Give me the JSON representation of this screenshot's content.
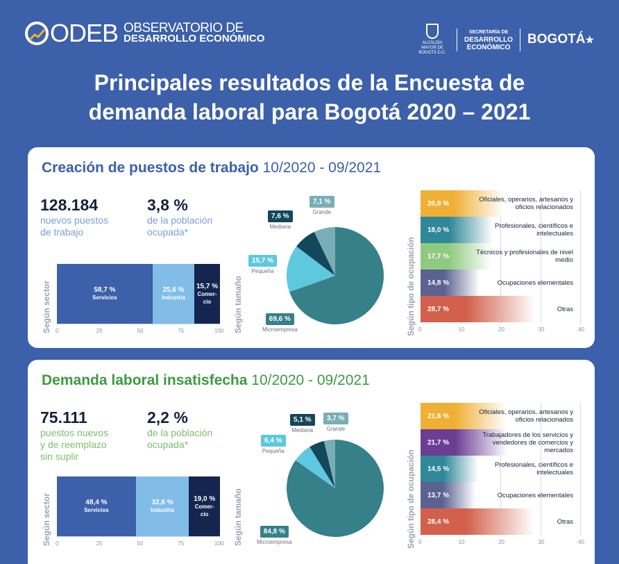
{
  "header": {
    "logo_letters": "ODEB",
    "logo_line1": "OBSERVATORIO DE",
    "logo_line2": "DESARROLLO ECONÓMICO",
    "alcaldia": "ALCALDÍA MAYOR DE BOGOTÁ D.C.",
    "sec_line1": "SECRETARÍA DE",
    "sec_line2": "DESARROLLO",
    "sec_line3": "ECONÓMICO",
    "bogota": "BOGOTÁ"
  },
  "title_line1": "Principales resultados de la Encuesta de",
  "title_line2": "demanda laboral para Bogotá 2020 – 2021",
  "colors": {
    "background": "#3c60a9",
    "servicios": "#3c60a9",
    "industria": "#82bde8",
    "comercio": "#14254f",
    "pie_micro": "#36808a",
    "pie_pequena": "#5ec8de",
    "pie_mediana": "#13475a",
    "pie_grande": "#7aaeb6",
    "occ_oficiales": "#efb035",
    "occ_profesionales": "#2f8898",
    "occ_tecnicos": "#8fca80",
    "occ_elementales": "#5a6390",
    "occ_trabajadores": "#6b3e94",
    "occ_otras": "#d2604c"
  },
  "chart_data": [
    {
      "section_title": "Creación de puestos de trabajo",
      "period": "10/2020 - 09/2021",
      "headline_value": "128.184",
      "headline_desc1": "nuevos puestos",
      "headline_desc2": "de trabajo",
      "headline_desc3": "",
      "share_value": "3,8 %",
      "share_desc1": "de la población",
      "share_desc2": "ocupada*",
      "sector": {
        "type": "bar",
        "label": "Según sector",
        "ticks": [
          "0",
          "25",
          "50",
          "75",
          "100"
        ],
        "segments": [
          {
            "name": "Servicios",
            "value": 58.7,
            "value_label": "58,7 %"
          },
          {
            "name": "Industria",
            "value": 25.6,
            "value_label": "25,6 %"
          },
          {
            "name": "Comer-cio",
            "value": 15.7,
            "value_label": "15,7 %"
          }
        ]
      },
      "size": {
        "type": "pie",
        "label": "Según tamaño",
        "slices": [
          {
            "name": "Microempresa",
            "value": 69.6,
            "value_label": "69,6 %"
          },
          {
            "name": "Pequeña",
            "value": 15.7,
            "value_label": "15,7 %"
          },
          {
            "name": "Mediana",
            "value": 7.6,
            "value_label": "7,6 %"
          },
          {
            "name": "Grande",
            "value": 7.1,
            "value_label": "7,1 %"
          }
        ]
      },
      "occupation": {
        "type": "bar",
        "label": "Según tipo de ocupación",
        "ticks": [
          "0",
          "10",
          "20",
          "30",
          "40"
        ],
        "xlim": [
          0,
          40
        ],
        "bars": [
          {
            "name": "Oficiales, operarios, artesanos y oficios relacionados",
            "value": 20.8,
            "value_label": "20,8 %",
            "color_key": "occ_oficiales"
          },
          {
            "name": "Profesionales, científicos e intelectuales",
            "value": 18.0,
            "value_label": "18,0 %",
            "color_key": "occ_profesionales"
          },
          {
            "name": "Técnicos y profesionales de nivel medio",
            "value": 17.7,
            "value_label": "17,7 %",
            "color_key": "occ_tecnicos"
          },
          {
            "name": "Ocupaciones elementales",
            "value": 14.8,
            "value_label": "14,8 %",
            "color_key": "occ_elementales"
          },
          {
            "name": "Otras",
            "value": 28.7,
            "value_label": "28,7 %",
            "color_key": "occ_otras"
          }
        ]
      }
    },
    {
      "section_title": "Demanda laboral insatisfecha",
      "period": "10/2020 - 09/2021",
      "headline_value": "75.111",
      "headline_desc1": "puestos nuevos",
      "headline_desc2": "y de reemplazo",
      "headline_desc3": "sin suplir",
      "share_value": "2,2 %",
      "share_desc1": "de la población",
      "share_desc2": "ocupada*",
      "sector": {
        "type": "bar",
        "label": "Según sector",
        "ticks": [
          "0",
          "25",
          "50",
          "75",
          "100"
        ],
        "segments": [
          {
            "name": "Servicios",
            "value": 48.4,
            "value_label": "48,4 %"
          },
          {
            "name": "Industria",
            "value": 32.6,
            "value_label": "32,6 %"
          },
          {
            "name": "Comer-cio",
            "value": 19.0,
            "value_label": "19,0 %"
          }
        ]
      },
      "size": {
        "type": "pie",
        "label": "Según tamaño",
        "slices": [
          {
            "name": "Microempresa",
            "value": 84.8,
            "value_label": "84,8 %"
          },
          {
            "name": "Pequeña",
            "value": 6.4,
            "value_label": "6,4 %"
          },
          {
            "name": "Mediana",
            "value": 5.1,
            "value_label": "5,1 %"
          },
          {
            "name": "Grande",
            "value": 3.7,
            "value_label": "3,7 %"
          }
        ]
      },
      "occupation": {
        "type": "bar",
        "label": "Según tipo de ocupación",
        "ticks": [
          "0",
          "10",
          "20",
          "30",
          "40"
        ],
        "xlim": [
          0,
          40
        ],
        "bars": [
          {
            "name": "Oficiales, operarios, artesanos y oficios relacionados",
            "value": 21.6,
            "value_label": "21,6 %",
            "color_key": "occ_oficiales"
          },
          {
            "name": "Trabajadores de los servicios y vendedores de comercios y mercados",
            "value": 21.7,
            "value_label": "21,7 %",
            "color_key": "occ_trabajadores"
          },
          {
            "name": "Profesionales, científicos e intelectuales",
            "value": 14.5,
            "value_label": "14,5 %",
            "color_key": "occ_profesionales"
          },
          {
            "name": "Ocupaciones elementales",
            "value": 13.7,
            "value_label": "13,7 %",
            "color_key": "occ_elementales"
          },
          {
            "name": "Otras",
            "value": 28.4,
            "value_label": "28,4 %",
            "color_key": "occ_otras"
          }
        ]
      }
    }
  ]
}
